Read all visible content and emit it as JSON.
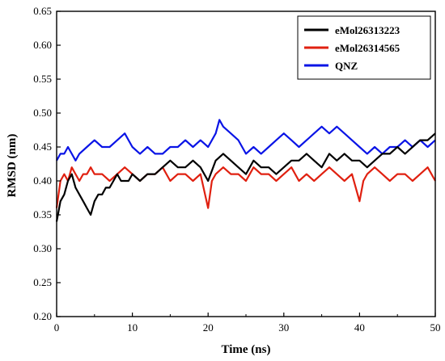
{
  "chart_data": {
    "type": "line",
    "title": "",
    "xlabel": "Time (ns)",
    "ylabel": "RMSD (nm)",
    "xlim": [
      0,
      50
    ],
    "ylim": [
      0.2,
      0.65
    ],
    "xticks": [
      0,
      10,
      20,
      30,
      40,
      50
    ],
    "yticks": [
      "0.20",
      "0.25",
      "0.30",
      "0.35",
      "0.40",
      "0.45",
      "0.50",
      "0.55",
      "0.60",
      "0.65"
    ],
    "grid": false,
    "legend_position": "top-right",
    "series": [
      {
        "name": "eMol26313223",
        "color": "#000000",
        "x": [
          0,
          0.5,
          1,
          1.5,
          2,
          2.5,
          3,
          3.5,
          4,
          4.5,
          5,
          5.5,
          6,
          6.5,
          7,
          7.5,
          8,
          8.5,
          9,
          9.5,
          10,
          11,
          12,
          13,
          14,
          15,
          16,
          17,
          18,
          19,
          20,
          21,
          22,
          23,
          24,
          25,
          26,
          27,
          28,
          29,
          30,
          31,
          32,
          33,
          34,
          35,
          36,
          37,
          38,
          39,
          40,
          41,
          42,
          43,
          44,
          45,
          46,
          47,
          48,
          49,
          50
        ],
        "values": [
          0.34,
          0.37,
          0.38,
          0.4,
          0.41,
          0.39,
          0.38,
          0.37,
          0.36,
          0.35,
          0.37,
          0.38,
          0.38,
          0.39,
          0.39,
          0.4,
          0.41,
          0.4,
          0.4,
          0.4,
          0.41,
          0.4,
          0.41,
          0.41,
          0.42,
          0.43,
          0.42,
          0.42,
          0.43,
          0.42,
          0.4,
          0.43,
          0.44,
          0.43,
          0.42,
          0.41,
          0.43,
          0.42,
          0.42,
          0.41,
          0.42,
          0.43,
          0.43,
          0.44,
          0.43,
          0.42,
          0.44,
          0.43,
          0.44,
          0.43,
          0.43,
          0.42,
          0.43,
          0.44,
          0.44,
          0.45,
          0.44,
          0.45,
          0.46,
          0.46,
          0.47
        ]
      },
      {
        "name": "eMol26314565",
        "color": "#e02010",
        "x": [
          0,
          0.5,
          1,
          1.5,
          2,
          2.5,
          3,
          3.5,
          4,
          4.5,
          5,
          6,
          7,
          8,
          9,
          10,
          11,
          12,
          13,
          14,
          15,
          16,
          17,
          18,
          19,
          20,
          20.5,
          21,
          22,
          23,
          24,
          25,
          26,
          27,
          28,
          29,
          30,
          31,
          32,
          33,
          34,
          35,
          36,
          37,
          38,
          39,
          40,
          40.5,
          41,
          42,
          43,
          44,
          45,
          46,
          47,
          48,
          49,
          50
        ],
        "values": [
          0.36,
          0.4,
          0.41,
          0.4,
          0.42,
          0.41,
          0.4,
          0.41,
          0.41,
          0.42,
          0.41,
          0.41,
          0.4,
          0.41,
          0.42,
          0.41,
          0.4,
          0.41,
          0.41,
          0.42,
          0.4,
          0.41,
          0.41,
          0.4,
          0.41,
          0.36,
          0.4,
          0.41,
          0.42,
          0.41,
          0.41,
          0.4,
          0.42,
          0.41,
          0.41,
          0.4,
          0.41,
          0.42,
          0.4,
          0.41,
          0.4,
          0.41,
          0.42,
          0.41,
          0.4,
          0.41,
          0.37,
          0.4,
          0.41,
          0.42,
          0.41,
          0.4,
          0.41,
          0.41,
          0.4,
          0.41,
          0.42,
          0.4
        ]
      },
      {
        "name": "QNZ",
        "color": "#0a14e6",
        "x": [
          0,
          0.5,
          1,
          1.5,
          2,
          2.5,
          3,
          4,
          5,
          6,
          7,
          8,
          9,
          10,
          11,
          12,
          13,
          14,
          15,
          16,
          17,
          18,
          19,
          20,
          21,
          21.5,
          22,
          23,
          24,
          25,
          26,
          27,
          28,
          29,
          30,
          31,
          32,
          33,
          34,
          35,
          36,
          37,
          38,
          39,
          40,
          41,
          42,
          43,
          44,
          45,
          46,
          47,
          48,
          49,
          50
        ],
        "values": [
          0.43,
          0.44,
          0.44,
          0.45,
          0.44,
          0.43,
          0.44,
          0.45,
          0.46,
          0.45,
          0.45,
          0.46,
          0.47,
          0.45,
          0.44,
          0.45,
          0.44,
          0.44,
          0.45,
          0.45,
          0.46,
          0.45,
          0.46,
          0.45,
          0.47,
          0.49,
          0.48,
          0.47,
          0.46,
          0.44,
          0.45,
          0.44,
          0.45,
          0.46,
          0.47,
          0.46,
          0.45,
          0.46,
          0.47,
          0.48,
          0.47,
          0.48,
          0.47,
          0.46,
          0.45,
          0.44,
          0.45,
          0.44,
          0.45,
          0.45,
          0.46,
          0.45,
          0.46,
          0.45,
          0.46
        ]
      }
    ]
  }
}
